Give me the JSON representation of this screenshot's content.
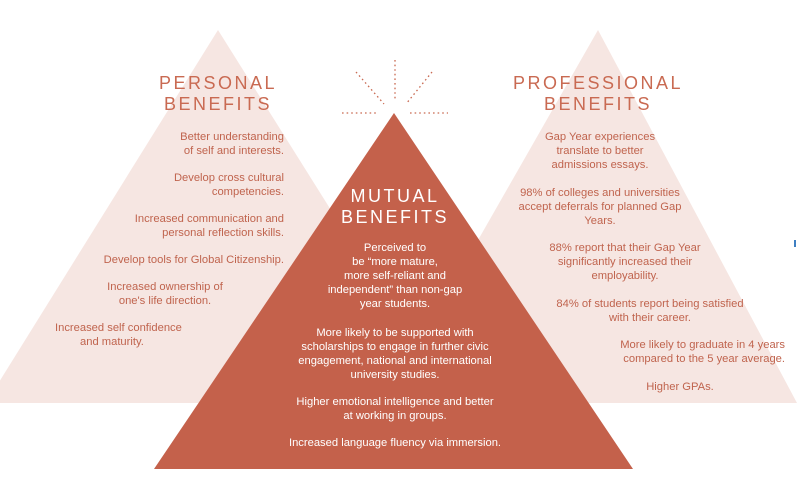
{
  "colors": {
    "side_triangle_fill": "#f6e6e2",
    "center_triangle_fill": "#c4614b",
    "side_text": "#c0644e",
    "center_text": "#ffffff",
    "spark_lines": "#c96a52",
    "edge_mark": "#3f7fc2"
  },
  "personal": {
    "title_line1": "PERSONAL",
    "title_line2": "BENEFITS",
    "items": [
      {
        "lines": [
          "Better understanding",
          "of self and interests."
        ]
      },
      {
        "lines": [
          "Develop cross cultural",
          "competencies."
        ]
      },
      {
        "lines": [
          "Increased communication and",
          "personal reflection skills."
        ]
      },
      {
        "lines": [
          "Develop tools for Global Citizenship."
        ]
      },
      {
        "lines": [
          "Increased ownership of",
          "one's life direction."
        ]
      },
      {
        "lines": [
          "Increased self confidence",
          "and maturity."
        ]
      }
    ]
  },
  "mutual": {
    "title_line1": "MUTUAL",
    "title_line2": "BENEFITS",
    "items": [
      {
        "lines": [
          "Perceived to",
          "be “more mature,",
          "more self-reliant and",
          "independent” than non-gap",
          "year students."
        ]
      },
      {
        "lines": [
          "More likely to be supported with",
          "scholarships to engage in further civic",
          "engagement, national and international",
          "university studies."
        ]
      },
      {
        "lines": [
          "Higher emotional intelligence and better",
          "at working in groups."
        ]
      },
      {
        "lines": [
          "Increased language fluency via immersion."
        ]
      }
    ]
  },
  "professional": {
    "title_line1": "PROFESSIONAL",
    "title_line2": "BENEFITS",
    "items": [
      {
        "lines": [
          "Gap Year experiences",
          "translate to better",
          "admissions essays."
        ]
      },
      {
        "lines": [
          "98% of colleges and universities",
          "accept deferrals for planned Gap",
          "Years."
        ]
      },
      {
        "lines": [
          "88% report that their Gap Year",
          "significantly increased their",
          "employability."
        ]
      },
      {
        "lines": [
          "84% of students report being satisfied",
          "with their career."
        ]
      },
      {
        "lines": [
          "More likely to graduate in 4 years",
          "compared to the 5 year average."
        ]
      },
      {
        "lines": [
          "Higher GPAs."
        ]
      }
    ]
  }
}
